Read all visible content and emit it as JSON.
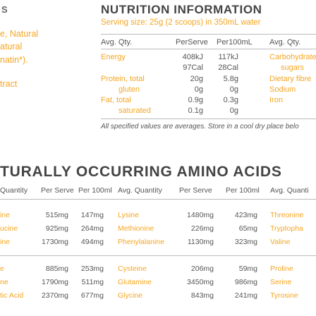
{
  "left_panel": {
    "heading": "S",
    "lines": [
      "e, Natural",
      "atural",
      "natin*).",
      "tract"
    ]
  },
  "nutrition": {
    "title": "NUTRITION INFORMATION",
    "serving": "Serving size: 25g (2 scoops) in 350mL water",
    "headers": [
      "Avg. Qty.",
      "PerServe",
      "Per100mL"
    ],
    "headers_right": "Avg. Qty.",
    "rows": [
      {
        "label": "Energy",
        "per_serve": "408kJ",
        "per_100": "117kJ"
      },
      {
        "label": "",
        "per_serve": "97Cal",
        "per_100": "28Cal"
      },
      {
        "label": "Protein, total",
        "per_serve": "20g",
        "per_100": "5.8g"
      },
      {
        "label": "gluten",
        "per_serve": "0g",
        "per_100": "0g"
      },
      {
        "label": "Fat, total",
        "per_serve": "0.9g",
        "per_100": "0.3g"
      },
      {
        "label": "saturated",
        "per_serve": "0.1g",
        "per_100": "0g"
      }
    ],
    "right_rows": [
      "Carbohydrate, to",
      "sugars",
      "Dietary fibre",
      "Sodium",
      "Iron"
    ],
    "footnote": "All specified values are averages. Store in a cool dry place belo"
  },
  "amino": {
    "title": "TURALLY OCCURRING AMINO ACIDS",
    "col1_head": "Quantity",
    "headers": [
      "Per Serve",
      "Per 100ml",
      "Avg. Quantity",
      "Per Serve",
      "Per 100ml",
      "Avg. Quanti"
    ],
    "rows": [
      {
        "n1": "ine",
        "s1": "515mg",
        "h1": "147mg",
        "n2": "Lysine",
        "s2": "1480mg",
        "h2": "423mg",
        "n3": "Threonine"
      },
      {
        "n1": "ucine",
        "s1": "925mg",
        "h1": "264mg",
        "n2": "Methionine",
        "s2": "226mg",
        "h2": "65mg",
        "n3": "Tryptopha"
      },
      {
        "n1": "ine",
        "s1": "1730mg",
        "h1": "494mg",
        "n2": "Phenylalanine",
        "s2": "1130mg",
        "h2": "323mg",
        "n3": "Valine"
      },
      {
        "n1": "e",
        "s1": "885mg",
        "h1": "253mg",
        "n2": "Cysteine",
        "s2": "206mg",
        "h2": "59mg",
        "n3": "Proline"
      },
      {
        "n1": "ne",
        "s1": "1790mg",
        "h1": "511mg",
        "n2": "Glutamine",
        "s2": "3450mg",
        "h2": "986mg",
        "n3": "Serine"
      },
      {
        "n1": "tic Acid",
        "s1": "2370mg",
        "h1": "677mg",
        "n2": "Glycine",
        "s2": "843mg",
        "h2": "241mg",
        "n3": "Tyrosine"
      }
    ]
  },
  "colors": {
    "accent": "#f5a623",
    "text": "#555555",
    "rule": "#bbbbbb"
  }
}
